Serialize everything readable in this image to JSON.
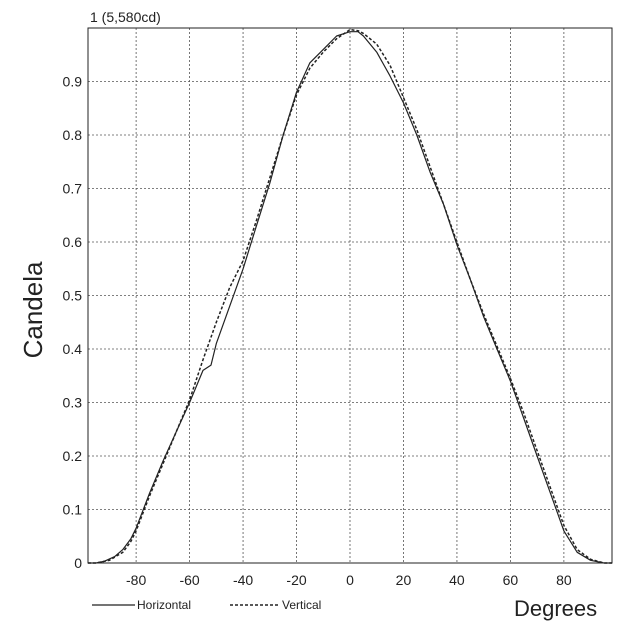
{
  "chart_data": {
    "type": "line",
    "title": "",
    "xlabel": "Degrees",
    "ylabel": "Candela",
    "peak_label": "1 (5,580cd)",
    "xlim": [
      -98,
      98
    ],
    "ylim": [
      0,
      1
    ],
    "x_ticks": [
      -80,
      -60,
      -40,
      -20,
      0,
      20,
      40,
      60,
      80
    ],
    "y_ticks": [
      0,
      0.1,
      0.2,
      0.3,
      0.4,
      0.5,
      0.6,
      0.7,
      0.8,
      0.9
    ],
    "grid": true,
    "legend_position": "bottom-left",
    "series": [
      {
        "name": "Horizontal",
        "style": "solid",
        "color": "#222222",
        "points": [
          [
            -98,
            0
          ],
          [
            -95,
            0
          ],
          [
            -92,
            0.003
          ],
          [
            -88,
            0.012
          ],
          [
            -85,
            0.025
          ],
          [
            -82,
            0.045
          ],
          [
            -80,
            0.065
          ],
          [
            -75,
            0.13
          ],
          [
            -70,
            0.19
          ],
          [
            -65,
            0.245
          ],
          [
            -60,
            0.3
          ],
          [
            -55,
            0.36
          ],
          [
            -52,
            0.37
          ],
          [
            -50,
            0.41
          ],
          [
            -45,
            0.48
          ],
          [
            -40,
            0.55
          ],
          [
            -35,
            0.63
          ],
          [
            -30,
            0.71
          ],
          [
            -25,
            0.8
          ],
          [
            -20,
            0.88
          ],
          [
            -15,
            0.935
          ],
          [
            -10,
            0.96
          ],
          [
            -5,
            0.985
          ],
          [
            0,
            0.993
          ],
          [
            3,
            0.993
          ],
          [
            5,
            0.985
          ],
          [
            10,
            0.955
          ],
          [
            15,
            0.91
          ],
          [
            20,
            0.86
          ],
          [
            25,
            0.8
          ],
          [
            30,
            0.73
          ],
          [
            35,
            0.67
          ],
          [
            40,
            0.595
          ],
          [
            45,
            0.53
          ],
          [
            50,
            0.46
          ],
          [
            55,
            0.4
          ],
          [
            60,
            0.34
          ],
          [
            65,
            0.27
          ],
          [
            70,
            0.2
          ],
          [
            75,
            0.13
          ],
          [
            80,
            0.06
          ],
          [
            85,
            0.02
          ],
          [
            90,
            0.005
          ],
          [
            95,
            0
          ],
          [
            98,
            0
          ]
        ]
      },
      {
        "name": "Vertical",
        "style": "dashed",
        "color": "#222222",
        "points": [
          [
            -98,
            0
          ],
          [
            -95,
            0
          ],
          [
            -90,
            0.005
          ],
          [
            -85,
            0.02
          ],
          [
            -82,
            0.04
          ],
          [
            -80,
            0.06
          ],
          [
            -75,
            0.125
          ],
          [
            -70,
            0.185
          ],
          [
            -65,
            0.245
          ],
          [
            -60,
            0.305
          ],
          [
            -55,
            0.38
          ],
          [
            -50,
            0.45
          ],
          [
            -45,
            0.515
          ],
          [
            -40,
            0.565
          ],
          [
            -35,
            0.64
          ],
          [
            -30,
            0.72
          ],
          [
            -25,
            0.8
          ],
          [
            -20,
            0.875
          ],
          [
            -15,
            0.925
          ],
          [
            -10,
            0.955
          ],
          [
            -5,
            0.98
          ],
          [
            0,
            0.997
          ],
          [
            3,
            0.995
          ],
          [
            5,
            0.99
          ],
          [
            10,
            0.97
          ],
          [
            15,
            0.93
          ],
          [
            20,
            0.87
          ],
          [
            25,
            0.81
          ],
          [
            30,
            0.74
          ],
          [
            35,
            0.67
          ],
          [
            40,
            0.6
          ],
          [
            45,
            0.53
          ],
          [
            50,
            0.465
          ],
          [
            55,
            0.405
          ],
          [
            60,
            0.345
          ],
          [
            65,
            0.28
          ],
          [
            70,
            0.21
          ],
          [
            75,
            0.14
          ],
          [
            80,
            0.07
          ],
          [
            85,
            0.025
          ],
          [
            90,
            0.007
          ],
          [
            95,
            0
          ],
          [
            98,
            0
          ]
        ]
      }
    ]
  }
}
